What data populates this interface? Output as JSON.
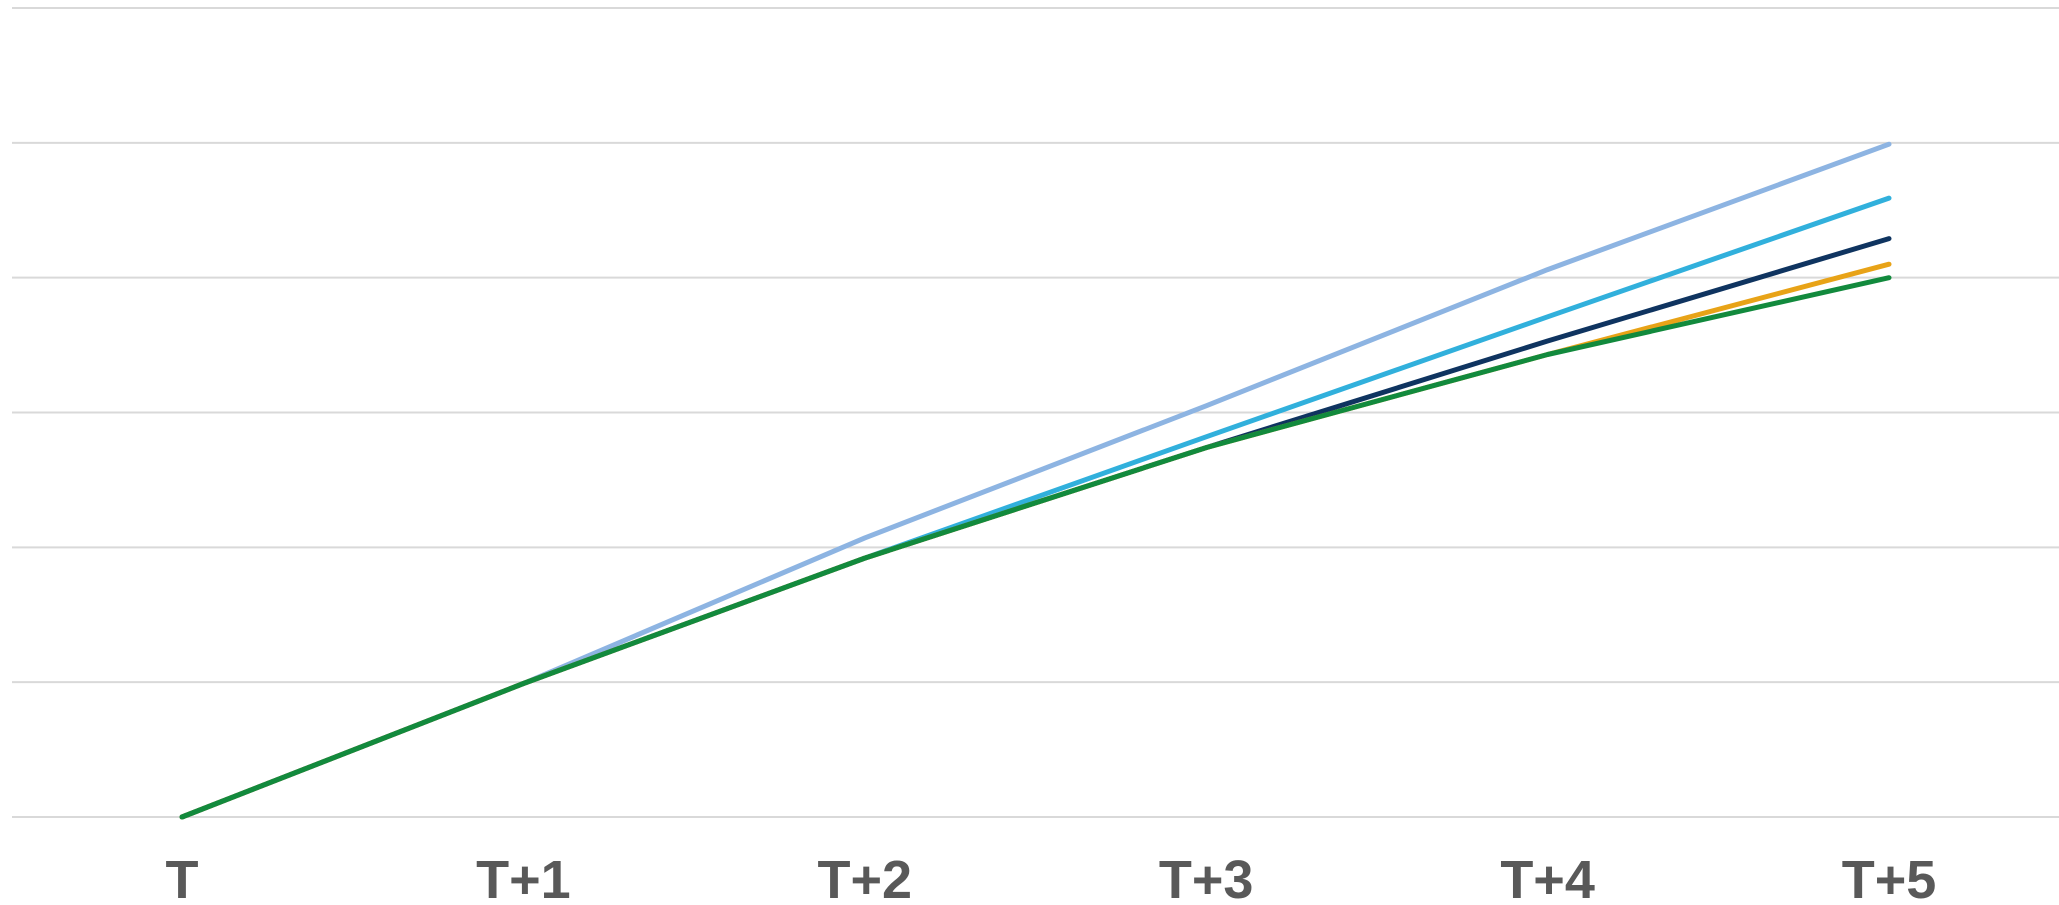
{
  "chart_data": {
    "type": "line",
    "title": "",
    "xlabel": "",
    "ylabel": "",
    "categories": [
      "T",
      "T+1",
      "T+2",
      "T+3",
      "T+4",
      "T+5"
    ],
    "ylim": [
      0,
      6
    ],
    "y_gridlines": [
      0,
      1,
      2,
      3,
      4,
      5,
      6
    ],
    "grid": true,
    "legend": "none",
    "series": [
      {
        "color": "#8db4e2",
        "values": [
          0,
          0.99,
          2.07,
          3.05,
          4.06,
          4.99
        ]
      },
      {
        "color": "#31b0dc",
        "values": [
          0,
          0.99,
          1.92,
          2.82,
          3.71,
          4.59
        ]
      },
      {
        "color": "#0f3460",
        "values": [
          0,
          0.99,
          1.92,
          2.74,
          3.53,
          4.29
        ]
      },
      {
        "color": "#e8a317",
        "values": [
          0,
          0.99,
          1.92,
          2.74,
          3.43,
          4.1
        ]
      },
      {
        "color": "#128a3d",
        "values": [
          0,
          0.99,
          1.92,
          2.74,
          3.43,
          4.0
        ]
      }
    ]
  }
}
